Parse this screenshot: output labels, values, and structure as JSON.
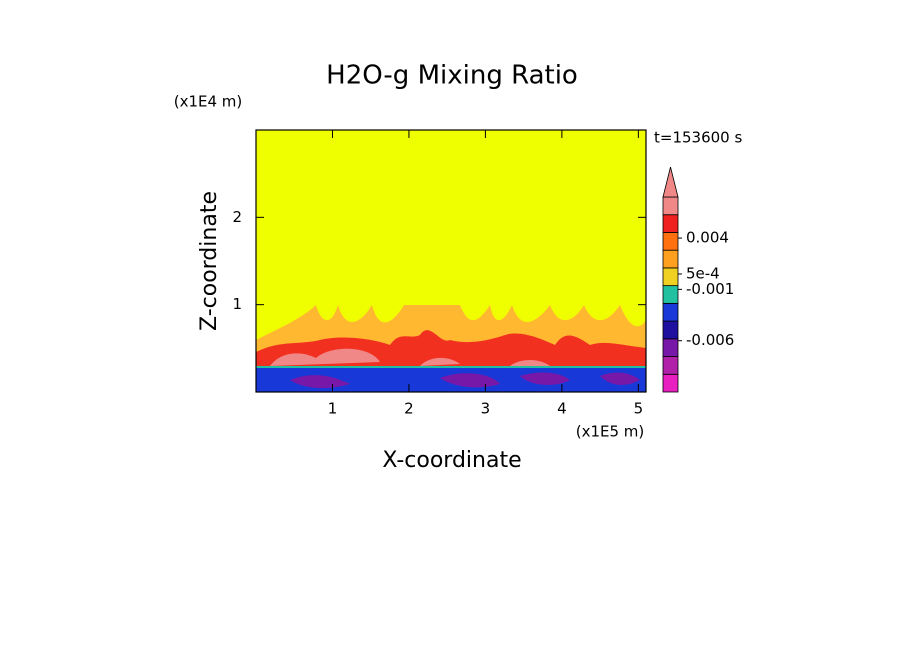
{
  "chart_data": {
    "type": "contour",
    "title": "H2O-g Mixing Ratio",
    "time_label": "t=153600 s",
    "x_label": "X-coordinate",
    "y_label": "Z-coordinate",
    "x_unit": "(x1E5 m)",
    "y_unit": "(x1E4 m)",
    "xlim": [
      0,
      5.1
    ],
    "xticks": [
      1,
      2,
      3,
      4,
      5
    ],
    "ylim": [
      0,
      3
    ],
    "yticks": [
      1,
      2
    ],
    "colorbar": {
      "zlim": [
        -0.011,
        0.008
      ],
      "colors": [
        "#e820c0",
        "#b020a8",
        "#7818a8",
        "#2010a0",
        "#1838d8",
        "#20c0a0",
        "#f0d020",
        "#ffa020",
        "#ff7010",
        "#f02020",
        "#f08888"
      ],
      "ticks": [
        {
          "value": 0.004,
          "label": "0.004"
        },
        {
          "value": 0.0005,
          "label": "5e-4"
        },
        {
          "value": -0.001,
          "label": "-0.001"
        },
        {
          "value": -0.006,
          "label": "-0.006"
        }
      ]
    }
  }
}
